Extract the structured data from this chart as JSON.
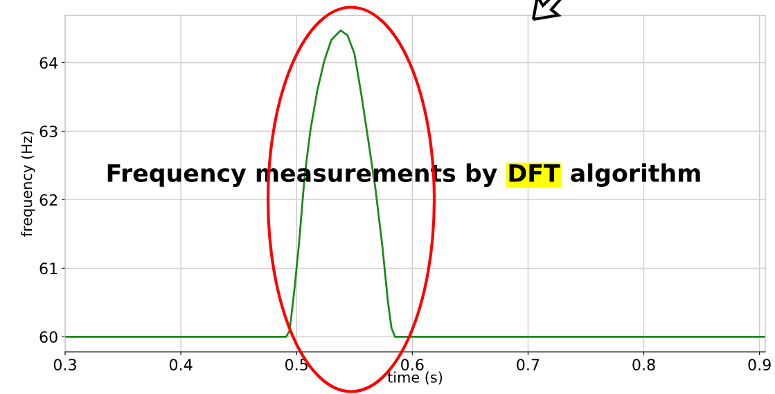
{
  "chart_data": {
    "type": "line",
    "xlabel": "time (s)",
    "ylabel": "frequency (Hz)",
    "x": [
      0.3,
      0.491,
      0.494,
      0.498,
      0.502,
      0.507,
      0.512,
      0.518,
      0.524,
      0.53,
      0.538,
      0.544,
      0.55,
      0.556,
      0.562,
      0.568,
      0.574,
      0.579,
      0.582,
      0.585,
      0.905
    ],
    "series": [
      {
        "color": "#1a8a1a",
        "values": [
          60,
          60,
          60.09,
          60.67,
          61.34,
          62.35,
          63.02,
          63.6,
          64.03,
          64.33,
          64.47,
          64.4,
          64.13,
          63.53,
          62.86,
          62.18,
          61.34,
          60.5,
          60.13,
          60,
          60
        ]
      }
    ],
    "xlim": [
      0.3,
      0.905
    ],
    "ylim": [
      59.78,
      64.69
    ],
    "xticks": [
      0.3,
      0.4,
      0.5,
      0.6,
      0.7,
      0.8,
      0.9
    ],
    "yticks": [
      60,
      61,
      62,
      63,
      64
    ],
    "grid": true,
    "marker": "none",
    "line_style": "solid",
    "annotations": [
      "Frequency measurements by",
      "DFT",
      "algorithm"
    ]
  }
}
